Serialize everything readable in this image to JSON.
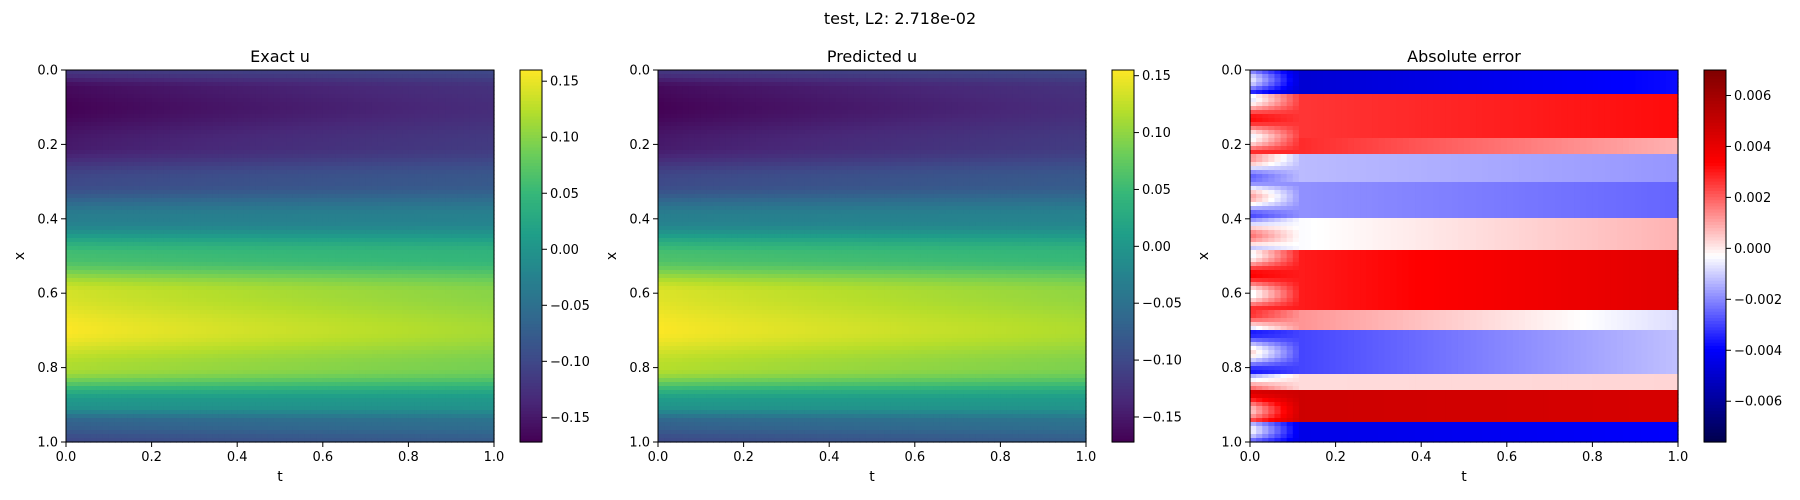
{
  "suptitle": "test, L2: 2.718e-02",
  "colormaps": {
    "viridis": [
      "#440154",
      "#482878",
      "#3e4a89",
      "#31688e",
      "#26828e",
      "#1f9e89",
      "#35b779",
      "#6ece58",
      "#b5de2b",
      "#fde725"
    ],
    "seismic": [
      "#00004c",
      "#0000ff",
      "#ffffff",
      "#ff0000",
      "#7f0000"
    ]
  },
  "chart_data": [
    {
      "type": "heatmap",
      "title": "Exact u",
      "xlabel": "t",
      "ylabel": "x",
      "xlim": [
        0,
        1
      ],
      "ylim": [
        1,
        0
      ],
      "xticks": [
        "0.0",
        "0.2",
        "0.4",
        "0.6",
        "0.8",
        "1.0"
      ],
      "yticks": [
        "0.0",
        "0.2",
        "0.4",
        "0.6",
        "0.8",
        "1.0"
      ],
      "colormap": "viridis",
      "clim": [
        -0.172,
        0.16
      ],
      "cbar_ticks": [
        "0.15",
        "0.10",
        "0.05",
        "0.00",
        "−0.05",
        "−0.10",
        "−0.15"
      ],
      "cbar_tick_values": [
        0.15,
        0.1,
        0.05,
        0.0,
        -0.05,
        -0.1,
        -0.15
      ],
      "profile_x": [
        0.0,
        0.05,
        0.1,
        0.2,
        0.3,
        0.4,
        0.5,
        0.6,
        0.7,
        0.8,
        0.9,
        0.95,
        1.0
      ],
      "profile_u_t0": [
        -0.12,
        -0.165,
        -0.172,
        -0.15,
        -0.1,
        -0.03,
        0.06,
        0.14,
        0.16,
        0.12,
        0.0,
        -0.07,
        -0.1
      ],
      "profile_u_t1": [
        -0.1,
        -0.125,
        -0.13,
        -0.115,
        -0.08,
        -0.025,
        0.045,
        0.1,
        0.115,
        0.09,
        0.0,
        -0.05,
        -0.075
      ]
    },
    {
      "type": "heatmap",
      "title": "Predicted u",
      "xlabel": "t",
      "ylabel": "x",
      "xlim": [
        0,
        1
      ],
      "ylim": [
        1,
        0
      ],
      "xticks": [
        "0.0",
        "0.2",
        "0.4",
        "0.6",
        "0.8",
        "1.0"
      ],
      "yticks": [
        "0.0",
        "0.2",
        "0.4",
        "0.6",
        "0.8",
        "1.0"
      ],
      "colormap": "viridis",
      "clim": [
        -0.172,
        0.155
      ],
      "cbar_ticks": [
        "0.15",
        "0.10",
        "0.05",
        "0.00",
        "−0.05",
        "−0.10",
        "−0.15"
      ],
      "cbar_tick_values": [
        0.15,
        0.1,
        0.05,
        0.0,
        -0.05,
        -0.1,
        -0.15
      ],
      "profile_x": [
        0.0,
        0.05,
        0.1,
        0.2,
        0.3,
        0.4,
        0.5,
        0.6,
        0.7,
        0.8,
        0.9,
        0.95,
        1.0
      ],
      "profile_u_t0": [
        -0.12,
        -0.165,
        -0.172,
        -0.15,
        -0.1,
        -0.03,
        0.06,
        0.14,
        0.155,
        0.12,
        0.0,
        -0.07,
        -0.1
      ],
      "profile_u_t1": [
        -0.1,
        -0.125,
        -0.13,
        -0.115,
        -0.08,
        -0.025,
        0.045,
        0.1,
        0.115,
        0.09,
        0.0,
        -0.05,
        -0.075
      ]
    },
    {
      "type": "heatmap",
      "title": "Absolute error",
      "xlabel": "t",
      "ylabel": "x",
      "xlim": [
        0,
        1
      ],
      "ylim": [
        1,
        0
      ],
      "xticks": [
        "0.0",
        "0.2",
        "0.4",
        "0.6",
        "0.8",
        "1.0"
      ],
      "yticks": [
        "0.0",
        "0.2",
        "0.4",
        "0.6",
        "0.8",
        "1.0"
      ],
      "colormap": "seismic",
      "clim": [
        -0.0076,
        0.007
      ],
      "cbar_ticks": [
        "0.006",
        "0.004",
        "0.002",
        "0.000",
        "−0.002",
        "−0.004",
        "−0.006"
      ],
      "cbar_tick_values": [
        0.006,
        0.004,
        0.002,
        0.0,
        -0.002,
        -0.004,
        -0.006
      ],
      "bands": [
        {
          "x0": 0.0,
          "x1": 0.06,
          "v0": -0.005,
          "v1": -0.0038
        },
        {
          "x0": 0.06,
          "x1": 0.18,
          "v0": 0.0025,
          "v1": 0.0032
        },
        {
          "x0": 0.18,
          "x1": 0.23,
          "v0": 0.003,
          "v1": 0.0008
        },
        {
          "x0": 0.23,
          "x1": 0.3,
          "v0": -0.0012,
          "v1": -0.0018
        },
        {
          "x0": 0.3,
          "x1": 0.4,
          "v0": -0.0018,
          "v1": -0.0025
        },
        {
          "x0": 0.4,
          "x1": 0.48,
          "v0": -0.0005,
          "v1": 0.0008
        },
        {
          "x0": 0.48,
          "x1": 0.64,
          "v0": 0.0028,
          "v1": 0.0042
        },
        {
          "x0": 0.64,
          "x1": 0.7,
          "v0": 0.0015,
          "v1": -0.0008
        },
        {
          "x0": 0.7,
          "x1": 0.82,
          "v0": -0.0032,
          "v1": -0.0012
        },
        {
          "x0": 0.82,
          "x1": 0.86,
          "v0": 0.0002,
          "v1": 0.0003
        },
        {
          "x0": 0.86,
          "x1": 0.95,
          "v0": 0.0048,
          "v1": 0.0045
        },
        {
          "x0": 0.95,
          "x1": 1.0,
          "v0": -0.0045,
          "v1": -0.004
        }
      ]
    }
  ]
}
